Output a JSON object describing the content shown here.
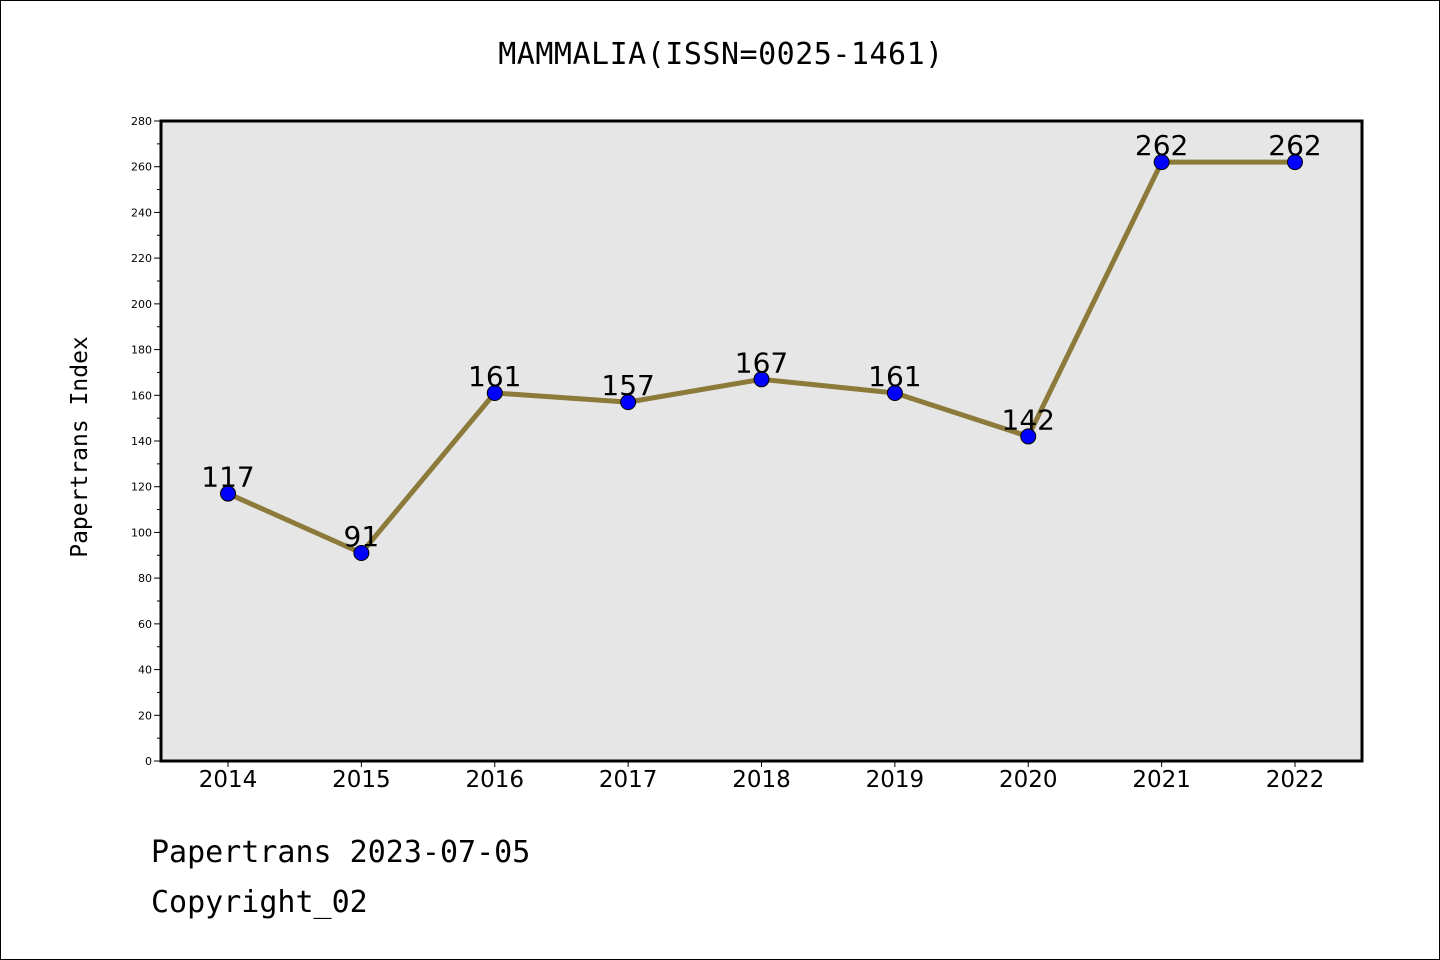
{
  "chart_data": {
    "type": "line",
    "title": "MAMMALIA(ISSN=0025-1461)",
    "xlabel": "",
    "ylabel": "Papertrans Index",
    "categories": [
      "2014",
      "2015",
      "2016",
      "2017",
      "2018",
      "2019",
      "2020",
      "2021",
      "2022"
    ],
    "series": [
      {
        "values": [
          117,
          91,
          161,
          157,
          167,
          161,
          142,
          262,
          262
        ]
      }
    ],
    "ylim": [
      0,
      280
    ],
    "yticks": [
      0,
      20,
      40,
      60,
      80,
      100,
      120,
      140,
      160,
      180,
      200,
      220,
      240,
      260,
      280
    ],
    "grid": false,
    "data_labels": true,
    "colors": {
      "line": "#8c7a3a",
      "marker": "#0000ff",
      "plot_background": "#e6e6e6"
    }
  },
  "footer": {
    "line1": "Papertrans 2023-07-05",
    "line2": "Copyright_02"
  }
}
